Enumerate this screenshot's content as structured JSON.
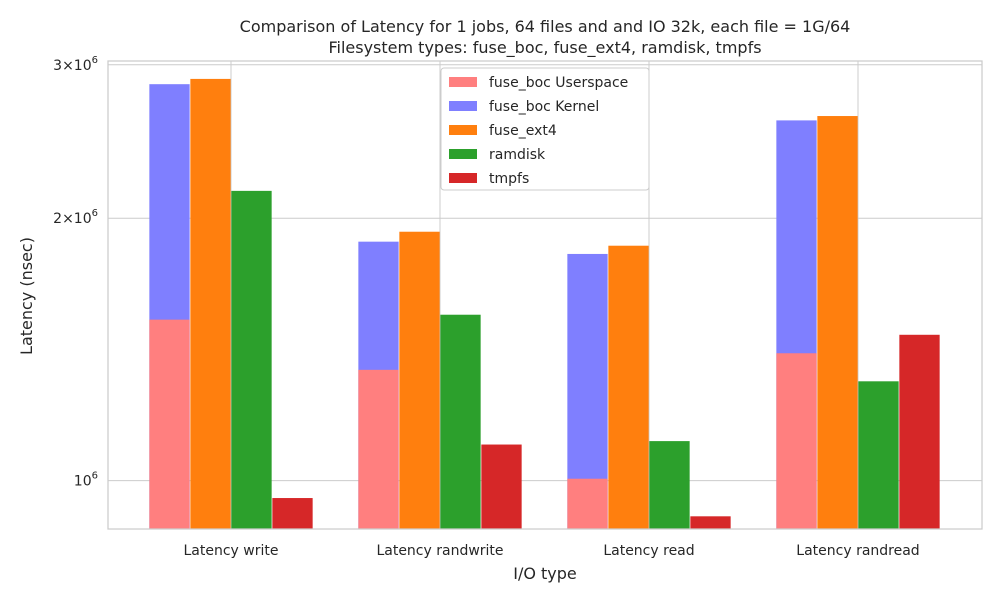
{
  "chart_data": {
    "type": "bar",
    "title": "Comparison of Latency for 1 jobs, 64 files and  and IO 32k, each file = 1G/64",
    "subtitle": "Filesystem types: fuse_boc, fuse_ext4, ramdisk, tmpfs",
    "xlabel": "I/O type",
    "ylabel": "Latency (nsec)",
    "yscale": "log",
    "ylim": [
      880000,
      3030000
    ],
    "grid": true,
    "legend_position": "top-center",
    "categories": [
      "Latency write",
      "Latency randwrite",
      "Latency read",
      "Latency randread"
    ],
    "yticks": [
      {
        "value": 1000000,
        "base": "10",
        "exp": "6",
        "coef": ""
      },
      {
        "value": 2000000,
        "base": "10",
        "exp": "6",
        "coef": "2×"
      },
      {
        "value": 3000000,
        "base": "10",
        "exp": "6",
        "coef": "3×"
      }
    ],
    "series": [
      {
        "name": "fuse_boc Userspace",
        "color": "#ff7f7f",
        "slot": 0,
        "values": [
          1530000,
          1340000,
          1005000,
          1400000
        ]
      },
      {
        "name": "fuse_boc Kernel",
        "color": "#7f7fff",
        "slot": 0,
        "values": [
          2850000,
          1880000,
          1820000,
          2590000
        ]
      },
      {
        "name": "fuse_ext4",
        "color": "#ff7f0e",
        "slot": 1,
        "values": [
          2890000,
          1930000,
          1860000,
          2620000
        ]
      },
      {
        "name": "ramdisk",
        "color": "#2ca02c",
        "slot": 2,
        "values": [
          2150000,
          1550000,
          1110000,
          1300000
        ]
      },
      {
        "name": "tmpfs",
        "color": "#d62728",
        "slot": 3,
        "values": [
          955000,
          1100000,
          910000,
          1470000
        ]
      }
    ],
    "draw_order": [
      1,
      0,
      2,
      3,
      4
    ]
  }
}
